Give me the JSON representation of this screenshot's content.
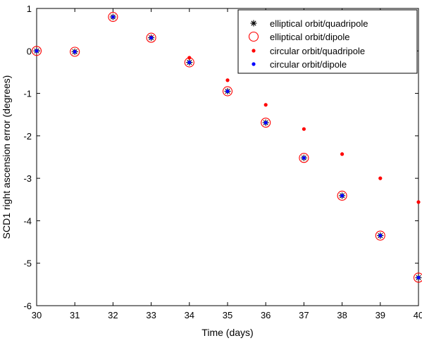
{
  "chart_data": {
    "type": "scatter",
    "xlabel": "Time (days)",
    "ylabel": "SCD1 right ascension error (degrees)",
    "xlim": [
      30,
      40
    ],
    "ylim": [
      -6,
      1
    ],
    "x_ticks": [
      30,
      31,
      32,
      33,
      34,
      35,
      36,
      37,
      38,
      39,
      40
    ],
    "y_ticks": [
      1,
      0,
      -1,
      -2,
      -3,
      -4,
      -5,
      -6
    ],
    "grid": false,
    "legend_position": "top-right",
    "series": [
      {
        "name": "elliptical orbit/quadripole",
        "marker": "asterisk",
        "color": "#000000",
        "x": [
          30,
          31,
          32,
          33,
          34,
          35,
          36,
          37,
          38,
          39,
          40
        ],
        "y": [
          0,
          -0.02,
          0.8,
          0.31,
          -0.27,
          -0.95,
          -1.69,
          -2.52,
          -3.41,
          -4.35,
          -5.34
        ]
      },
      {
        "name": "elliptical orbit/dipole",
        "marker": "circle-open",
        "color": "#ff0000",
        "x": [
          30,
          31,
          32,
          33,
          34,
          35,
          36,
          37,
          38,
          39,
          40
        ],
        "y": [
          0,
          -0.02,
          0.8,
          0.31,
          -0.27,
          -0.95,
          -1.69,
          -2.52,
          -3.41,
          -4.35,
          -5.34
        ]
      },
      {
        "name": "circular orbit/quadripole",
        "marker": "dot",
        "color": "#ff0000",
        "x": [
          30,
          31,
          32,
          33,
          34,
          35,
          36,
          37,
          38,
          39,
          40
        ],
        "y": [
          0,
          -0.02,
          0.8,
          0.32,
          -0.16,
          -0.69,
          -1.27,
          -1.84,
          -2.43,
          -3.0,
          -3.56
        ]
      },
      {
        "name": "circular orbit/dipole",
        "marker": "dot",
        "color": "#0000ff",
        "x": [
          30,
          31,
          32,
          33,
          34,
          35,
          36,
          37,
          38,
          39,
          40
        ],
        "y": [
          0,
          -0.02,
          0.8,
          0.31,
          -0.27,
          -0.95,
          -1.69,
          -2.52,
          -3.41,
          -4.35,
          -5.34
        ]
      }
    ]
  }
}
